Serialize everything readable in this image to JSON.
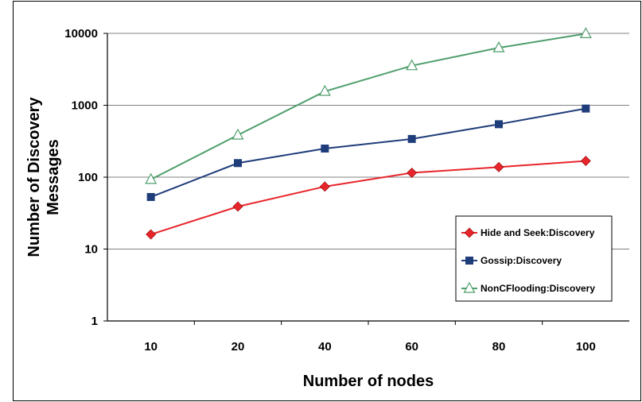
{
  "chart_data": {
    "type": "line",
    "y_scale": "log",
    "ylim": [
      1,
      10000
    ],
    "y_ticks": [
      "1",
      "10",
      "100",
      "1000",
      "10000"
    ],
    "categories": [
      "10",
      "20",
      "40",
      "60",
      "80",
      "100"
    ],
    "xlabel": "Number of nodes",
    "ylabel": "Number of Discovery Messages",
    "ylabel_lines": [
      "Number of Discovery",
      "Messages"
    ],
    "grid": "horizontal",
    "legend_position": "right",
    "series": [
      {
        "name": "Hide and Seek:Discovery",
        "color": "#e8252b",
        "marker": "diamond",
        "values": [
          16,
          39,
          74,
          115,
          138,
          168
        ]
      },
      {
        "name": "Gossip:Discovery",
        "color": "#1f3d7a",
        "marker": "square",
        "values": [
          53,
          157,
          250,
          340,
          545,
          900
        ]
      },
      {
        "name": "NonCFlooding:Discovery",
        "color": "#4e9e6b",
        "marker": "triangle",
        "values": [
          93,
          385,
          1560,
          3550,
          6300,
          9900
        ]
      }
    ]
  }
}
